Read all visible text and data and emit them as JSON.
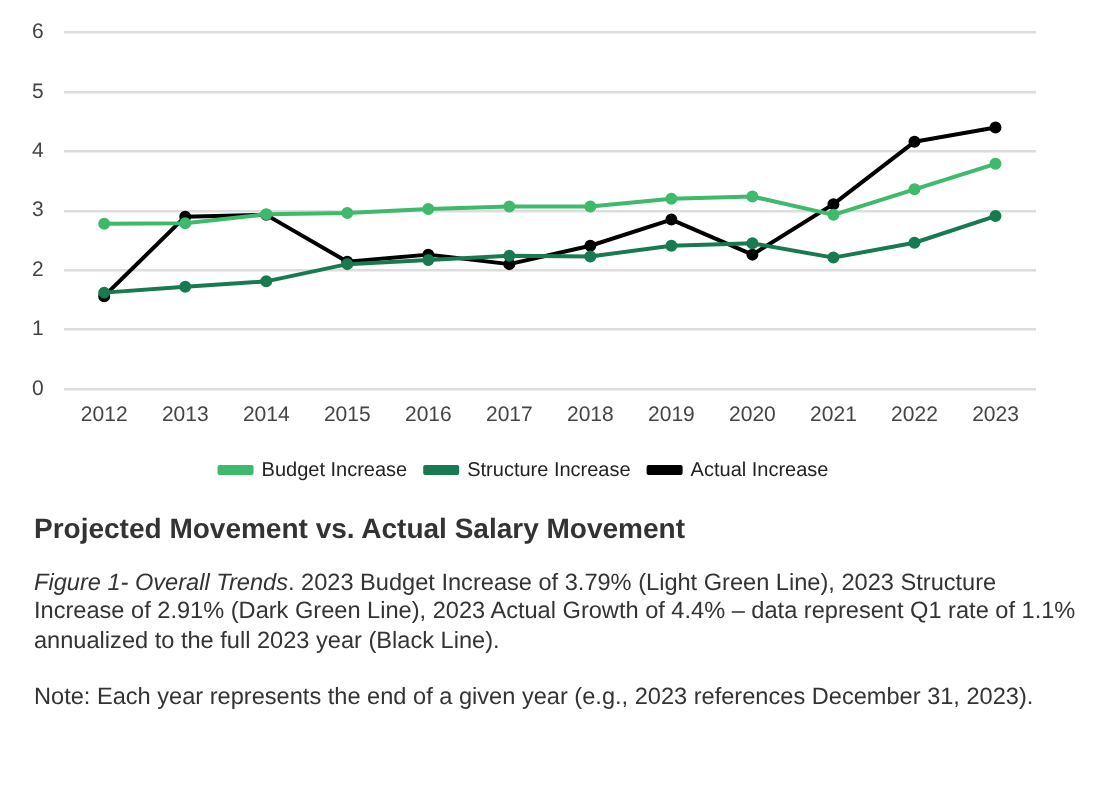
{
  "chart_data": {
    "type": "line",
    "title": "Projected Movement vs. Actual Salary Movement",
    "annotations": [
      "Figure 1- Overall Trends. 2023 Budget Increase of 3.79%  (Light Green Line), 2023 Structure Increase of 2.91% (Dark Green Line), 2023 Actual Growth of 4.4% – data represent Q1 rate of 1.1% annualized to the full 2023 year (Black Line).",
      "Note: Each year represents the end of a given year (e.g., 2023 references December 31, 2023)."
    ],
    "categories": [
      "2012",
      "2013",
      "2014",
      "2015",
      "2016",
      "2017",
      "2018",
      "2019",
      "2020",
      "2021",
      "2022",
      "2023"
    ],
    "series": [
      {
        "name": "Budget Increase",
        "color": "#3dba6b",
        "values": [
          2.78,
          2.79,
          2.94,
          2.96,
          3.03,
          3.07,
          3.07,
          3.2,
          3.24,
          2.93,
          3.36,
          3.79
        ]
      },
      {
        "name": "Structure Increase",
        "color": "#177a50",
        "values": [
          1.62,
          1.72,
          1.81,
          2.1,
          2.17,
          2.24,
          2.23,
          2.41,
          2.45,
          2.21,
          2.46,
          2.91
        ]
      },
      {
        "name": "Actual Increase",
        "color": "#000000",
        "values": [
          1.56,
          2.9,
          2.93,
          2.14,
          2.26,
          2.1,
          2.41,
          2.85,
          2.26,
          3.11,
          4.16,
          4.4
        ]
      }
    ],
    "ylim": [
      0,
      6
    ],
    "yticks": [
      0,
      1,
      2,
      3,
      4,
      5,
      6
    ],
    "grid": "y",
    "legend": "bottom",
    "marker": "circle",
    "line_style": "solid"
  }
}
